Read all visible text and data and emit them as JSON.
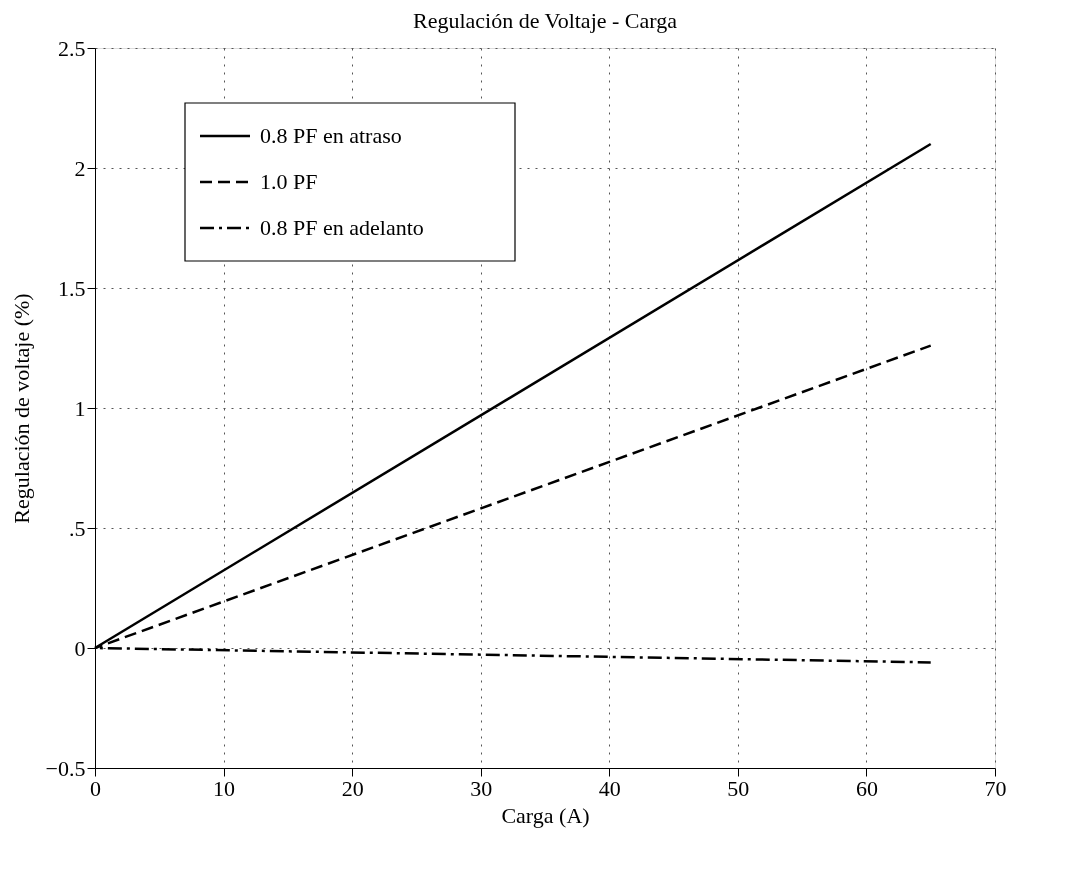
{
  "chart_data": {
    "type": "line",
    "title": "Regulación de Voltaje - Carga",
    "xlabel": "Carga (A)",
    "ylabel": "Regulación de voltaje (%)",
    "xlim": [
      0,
      70
    ],
    "xticks": [
      0,
      10,
      20,
      30,
      40,
      50,
      60,
      70
    ],
    "ylim": [
      -0.5,
      2.5
    ],
    "yticks": [
      -0.5,
      0,
      {
        "value": 0.5,
        "label": ".5"
      },
      1,
      1.5,
      2,
      2.5
    ],
    "grid": true,
    "legend": "top left",
    "x": [
      0,
      65
    ],
    "series": [
      {
        "name": "0.8 PF en atraso",
        "color": "#000000",
        "line_style": "solid",
        "values": [
          0,
          2.1
        ]
      },
      {
        "name": "1.0 PF",
        "color": "#000000",
        "line_style": "dashed",
        "values": [
          0,
          1.26
        ]
      },
      {
        "name": "0.8 PF en adelanto",
        "color": "#000000",
        "line_style": "dashdot",
        "values": [
          0,
          -0.06
        ]
      }
    ]
  }
}
